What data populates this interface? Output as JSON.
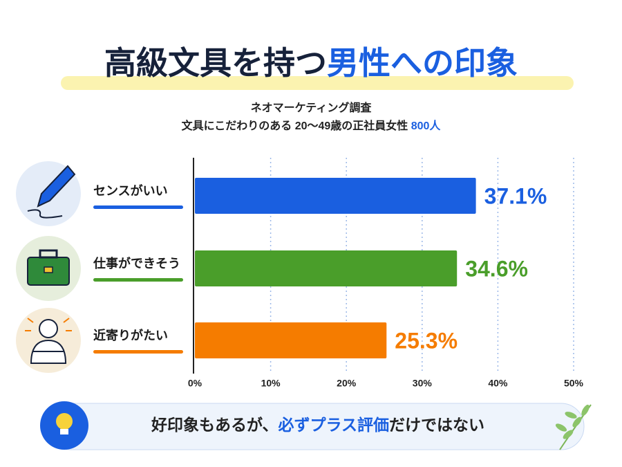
{
  "chart_data": {
    "type": "barh",
    "title_parts": [
      "高級文具を持つ",
      "男性への印象"
    ],
    "subtitle": "ネオマーケティング調査",
    "subtitle2_parts": [
      "文具にこだわりのある 20～49歳の正社員女性 ",
      "800人"
    ],
    "categories": [
      "センスがいい",
      "仕事ができそう",
      "近寄りがたい"
    ],
    "values": [
      37.1,
      34.6,
      25.3
    ],
    "value_labels": [
      "37.1%",
      "34.6%",
      "25.3%"
    ],
    "colors": [
      "#1a5fe0",
      "#4a9e2a",
      "#f57c00"
    ],
    "xlim": [
      0,
      50
    ],
    "xticks": [
      {
        "value": 0,
        "label": "0%"
      },
      {
        "value": 10,
        "label": "10%"
      },
      {
        "value": 20,
        "label": "20%"
      },
      {
        "value": 30,
        "label": "30%"
      },
      {
        "value": 40,
        "label": "40%"
      },
      {
        "value": 50,
        "label": "50%"
      }
    ],
    "grid": true,
    "footer_parts": [
      "好印象もあるが、",
      "必ずプラス評価",
      "だけではない"
    ]
  }
}
